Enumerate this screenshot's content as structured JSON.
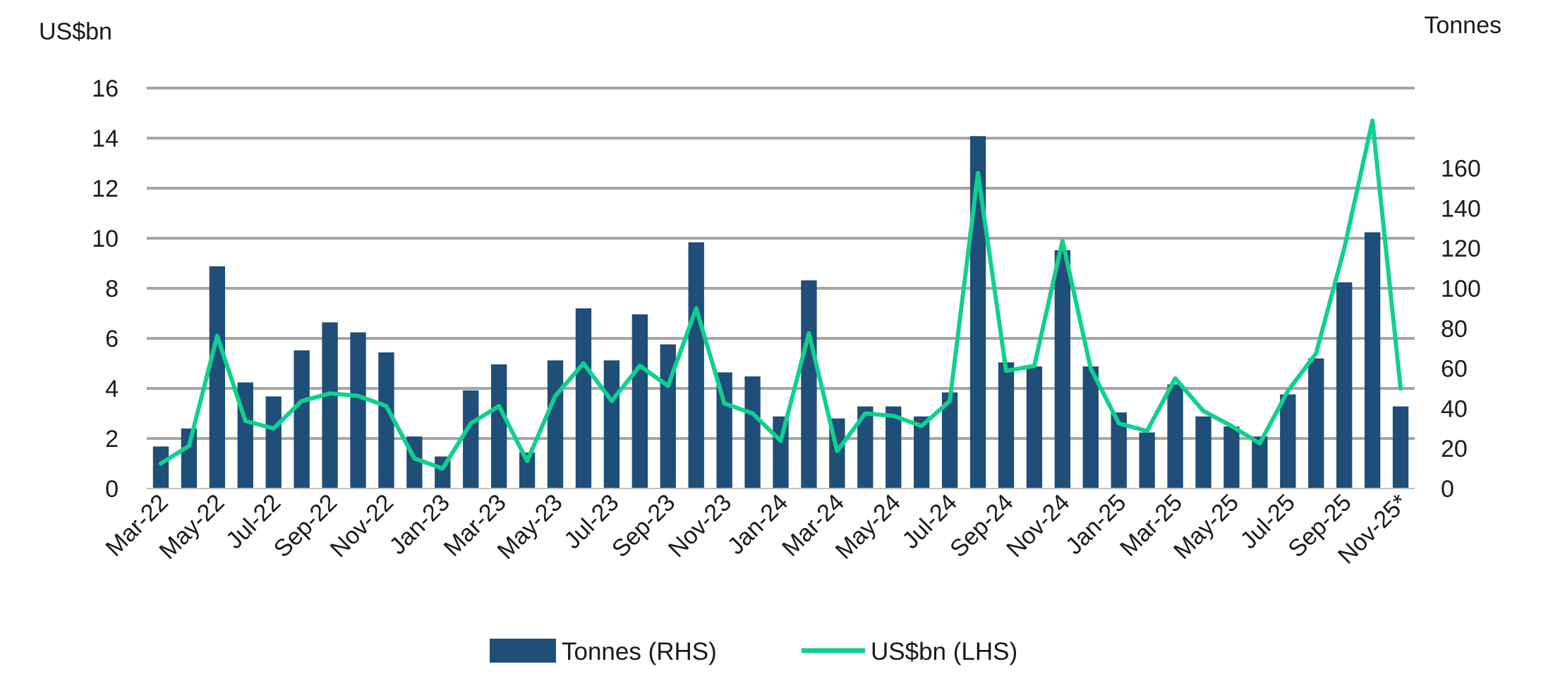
{
  "chart_data": {
    "type": "bar+line",
    "categories": [
      "Mar-22",
      "Apr-22",
      "May-22",
      "Jun-22",
      "Jul-22",
      "Aug-22",
      "Sep-22",
      "Oct-22",
      "Nov-22",
      "Dec-22",
      "Jan-23",
      "Feb-23",
      "Mar-23",
      "Apr-23",
      "May-23",
      "Jun-23",
      "Jul-23",
      "Aug-23",
      "Sep-23",
      "Oct-23",
      "Nov-23",
      "Dec-23",
      "Jan-24",
      "Feb-24",
      "Mar-24",
      "Apr-24",
      "May-24",
      "Jun-24",
      "Jul-24",
      "Aug-24",
      "Sep-24",
      "Oct-24",
      "Nov-24",
      "Dec-24",
      "Jan-25",
      "Feb-25",
      "Mar-25",
      "Apr-25",
      "May-25",
      "Jun-25",
      "Jul-25",
      "Aug-25",
      "Sep-25",
      "Oct-25",
      "Nov-25*"
    ],
    "tick_labels": [
      "Mar-22",
      "May-22",
      "Jul-22",
      "Sep-22",
      "Nov-22",
      "Jan-23",
      "Mar-23",
      "May-23",
      "Jul-23",
      "Sep-23",
      "Nov-23",
      "Jan-24",
      "Mar-24",
      "May-24",
      "Jul-24",
      "Sep-24",
      "Nov-24",
      "Jan-25",
      "Mar-25",
      "May-25",
      "Jul-25",
      "Sep-25",
      "Nov-25*"
    ],
    "series": [
      {
        "name": "Tonnes (RHS)",
        "type": "bar",
        "axis": "right",
        "color": "#1f4e79",
        "values": [
          21,
          30,
          111,
          53,
          46,
          69,
          83,
          78,
          68,
          26,
          16,
          49,
          62,
          18,
          64,
          90,
          64,
          87,
          72,
          123,
          58,
          56,
          36,
          104,
          35,
          41,
          41,
          36,
          48,
          176,
          63,
          61,
          119,
          61,
          38,
          28,
          52,
          36,
          31,
          26,
          47,
          65,
          103,
          128,
          41
        ]
      },
      {
        "name": "US$bn (LHS)",
        "type": "line",
        "axis": "left",
        "color": "#0fd08f",
        "values": [
          1.0,
          1.7,
          6.1,
          2.7,
          2.4,
          3.5,
          3.8,
          3.7,
          3.3,
          1.2,
          0.8,
          2.6,
          3.3,
          1.1,
          3.7,
          5.0,
          3.5,
          4.9,
          4.1,
          7.2,
          3.4,
          3.0,
          1.9,
          6.2,
          1.5,
          3.0,
          2.9,
          2.5,
          3.5,
          12.6,
          4.7,
          4.9,
          9.9,
          4.8,
          2.6,
          2.3,
          4.4,
          3.1,
          2.5,
          1.8,
          3.9,
          5.4,
          9.6,
          14.7,
          4.0
        ]
      }
    ],
    "left_axis": {
      "label": "US$bn",
      "min": 0,
      "max": 16,
      "step": 2
    },
    "right_axis": {
      "label": "Tonnes",
      "min": 0,
      "max": 200,
      "step": 20
    },
    "grid": true,
    "legend": "bottom-center"
  }
}
